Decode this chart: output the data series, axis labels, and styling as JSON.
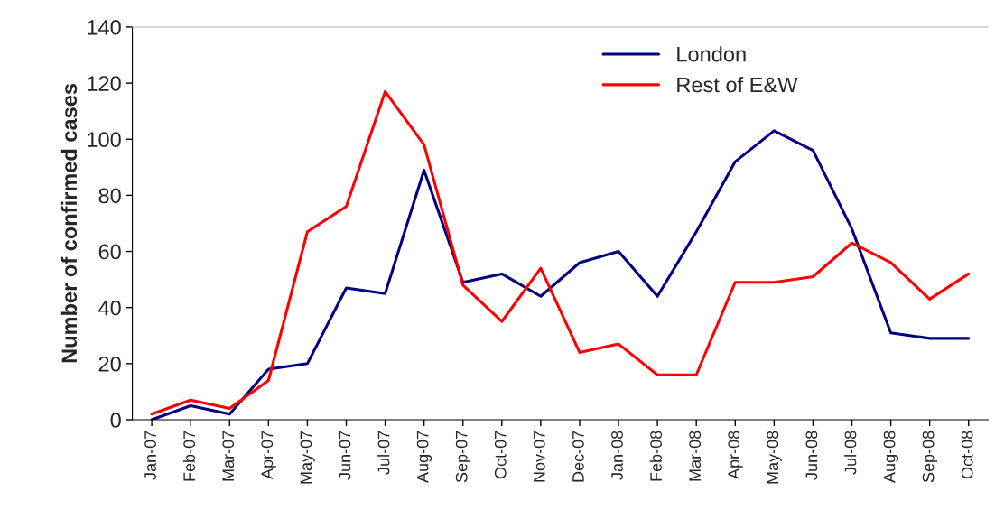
{
  "chart_data": {
    "type": "line",
    "ylabel": "Number of confirmed cases",
    "categories": [
      "Jan-07",
      "Feb-07",
      "Mar-07",
      "Apr-07",
      "May-07",
      "Jun-07",
      "Jul-07",
      "Aug-07",
      "Sep-07",
      "Oct-07",
      "Nov-07",
      "Dec-07",
      "Jan-08",
      "Feb-08",
      "Mar-08",
      "Apr-08",
      "May-08",
      "Jun-08",
      "Jul-08",
      "Aug-08",
      "Sep-08",
      "Oct-08"
    ],
    "series": [
      {
        "name": "London",
        "color": "#000080",
        "values": [
          0,
          5,
          2,
          18,
          20,
          47,
          45,
          89,
          49,
          52,
          44,
          56,
          60,
          44,
          67,
          92,
          103,
          96,
          68,
          31,
          29,
          29
        ]
      },
      {
        "name": "Rest of E&W",
        "color": "#ff0000",
        "values": [
          2,
          7,
          4,
          14,
          67,
          76,
          117,
          98,
          48,
          35,
          54,
          24,
          27,
          16,
          16,
          49,
          49,
          51,
          63,
          56,
          43,
          52
        ]
      }
    ],
    "ylim": [
      0,
      140
    ],
    "yticks": [
      0,
      20,
      40,
      60,
      80,
      100,
      120,
      140
    ],
    "grid": false,
    "legend": "top right"
  }
}
